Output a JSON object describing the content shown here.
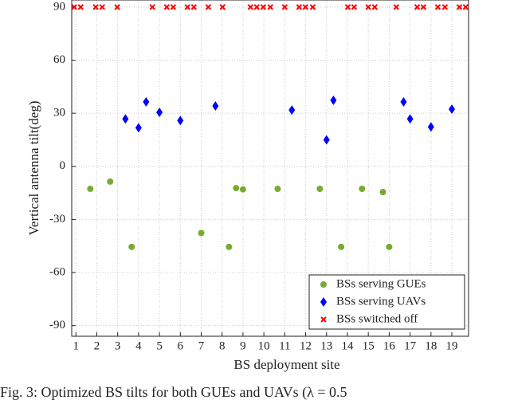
{
  "chart_data": {
    "type": "scatter",
    "xlabel": "BS deployment site",
    "ylabel": "Vertical antenna tilt(deg)",
    "caption": "Fig. 3: Optimized BS tilts for both GUEs and UAVs (λ = 0.5",
    "xlim": [
      0.8,
      19.8
    ],
    "ylim": [
      -96,
      94
    ],
    "xticks": [
      1,
      2,
      3,
      4,
      5,
      6,
      7,
      8,
      9,
      10,
      11,
      12,
      13,
      14,
      15,
      16,
      17,
      18,
      19
    ],
    "yticks": [
      -90,
      -60,
      -30,
      0,
      30,
      60,
      90
    ],
    "grid": true,
    "legend": "lower right",
    "series": [
      {
        "name": "BSs serving GUEs",
        "color": "#77ac30",
        "marker": "circle",
        "x": [
          1.69,
          2.64,
          3.67,
          7.0,
          8.33,
          8.67,
          9.0,
          10.66,
          12.68,
          13.7,
          14.7,
          15.7,
          16.0
        ],
        "values": [
          -12.7,
          -8.6,
          -45.5,
          -37.7,
          -45.5,
          -12.3,
          -13,
          -12.7,
          -12.7,
          -45.5,
          -12.7,
          -14.5,
          -45.5
        ]
      },
      {
        "name": "BSs serving UAVs",
        "color": "#0000ff",
        "marker": "diamond",
        "x": [
          3.37,
          4.0,
          4.36,
          5.0,
          6.0,
          7.68,
          11.34,
          13.0,
          13.33,
          16.69,
          17.0,
          18.0,
          19.0
        ],
        "values": [
          26.8,
          21.8,
          36.4,
          30.5,
          25.9,
          34.1,
          31.8,
          15,
          37.3,
          36.4,
          26.8,
          22.3,
          32.3
        ]
      },
      {
        "name": "BSs switched off",
        "color": "#ff0000",
        "marker": "x",
        "x": [
          0.92,
          1.23,
          1.95,
          2.26,
          2.98,
          4.66,
          5.35,
          5.66,
          6.34,
          6.65,
          7.34,
          8.02,
          9.36,
          9.66,
          9.97,
          10.31,
          11.0,
          11.69,
          11.99,
          12.34,
          14.02,
          14.32,
          15.0,
          15.31,
          16.34,
          17.34,
          17.64,
          18.33,
          18.67,
          19.36,
          19.66
        ],
        "values": [
          90,
          90,
          90,
          90,
          90,
          90,
          90,
          90,
          90,
          90,
          90,
          90,
          90,
          90,
          90,
          90,
          90,
          90,
          90,
          90,
          90,
          90,
          90,
          90,
          90,
          90,
          90,
          90,
          90,
          90,
          90
        ]
      }
    ]
  }
}
